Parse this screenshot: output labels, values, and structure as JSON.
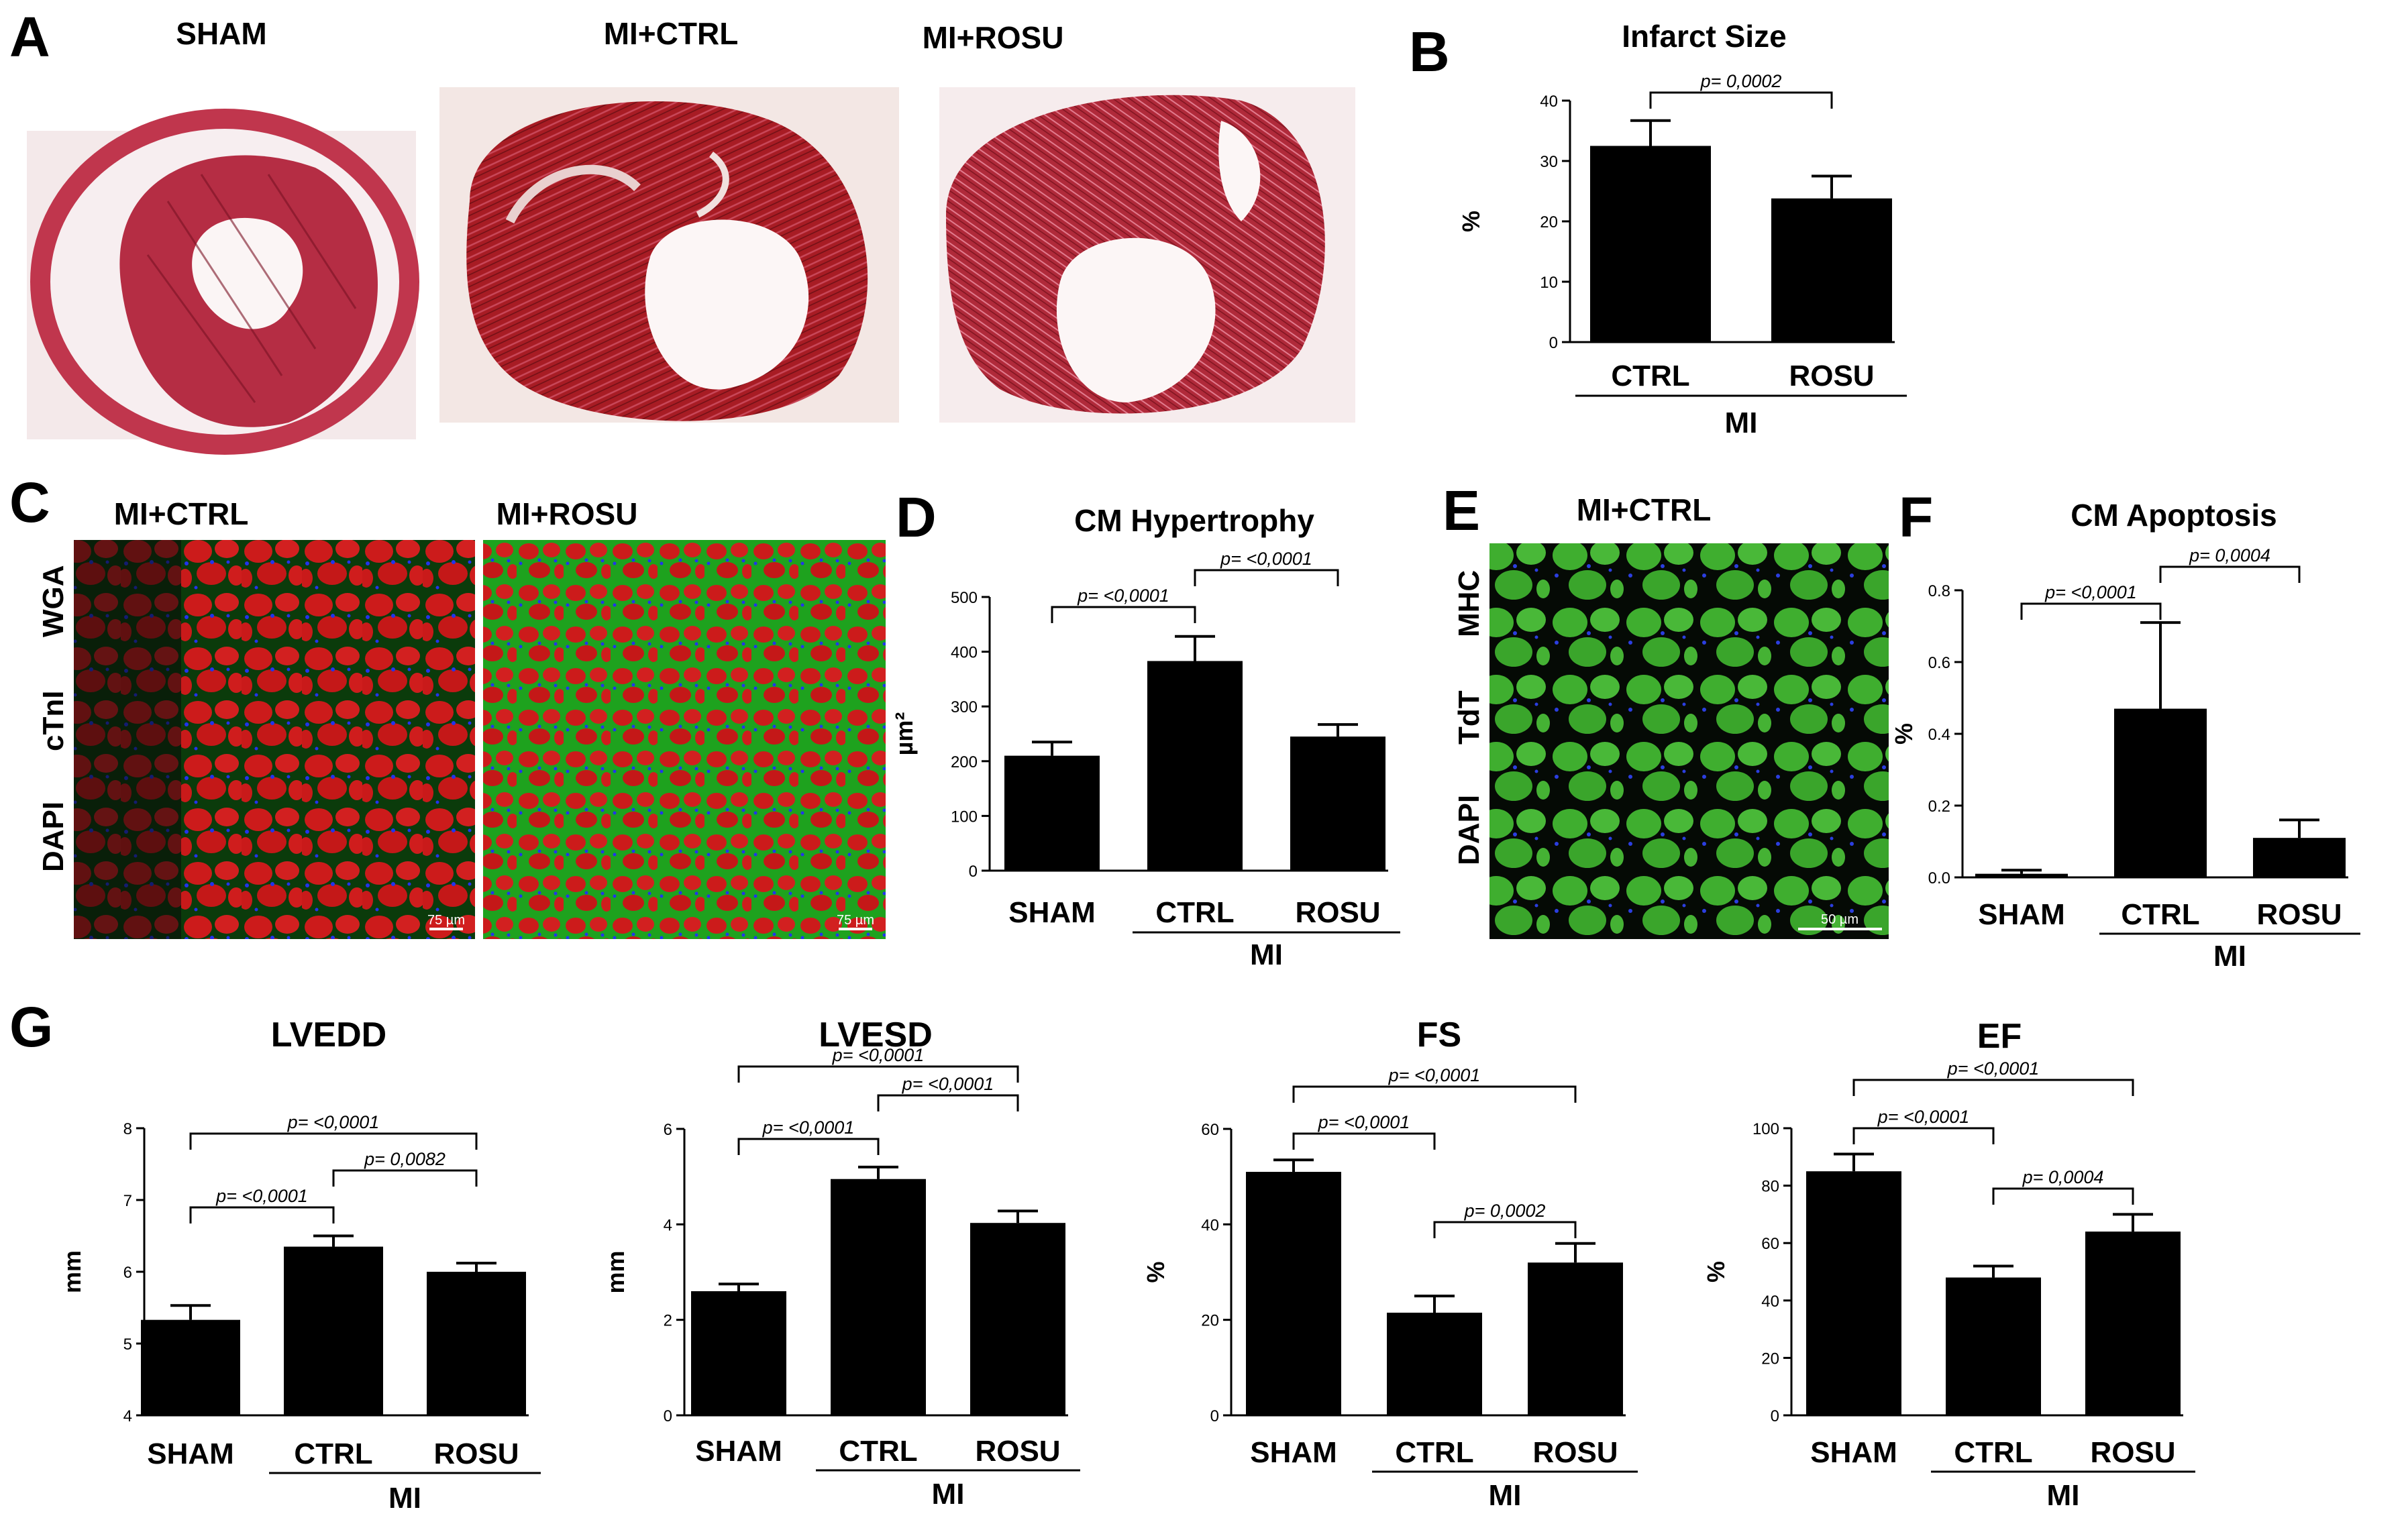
{
  "panels": {
    "A": {
      "letter": "A",
      "labels": [
        "SHAM",
        "MI+CTRL",
        "MI+ROSU"
      ],
      "colors": {
        "tissue": "#b5283e",
        "tissue_light": "#d9607a",
        "lumen": "#fbf3f3",
        "fibrosis": "#9c1c22"
      }
    },
    "C": {
      "letter": "C",
      "labels": [
        "MI+CTRL",
        "MI+ROSU"
      ],
      "stain_labels": [
        {
          "text": "WGA",
          "color": "#1fd11f"
        },
        {
          "text": "cTnI",
          "color": "#e01a1a"
        },
        {
          "text": "DAPI",
          "color": "#1a2bd9"
        }
      ],
      "scale_bars": [
        "75 µm",
        "75 µm"
      ]
    },
    "E": {
      "letter": "E",
      "label": "MI+CTRL",
      "stain_labels": [
        {
          "text": "MHC",
          "color": "#1fd11f"
        },
        {
          "text": "TdT",
          "color": "#e01a1a"
        },
        {
          "text": "DAPI",
          "color": "#1a2bd9"
        }
      ],
      "scale_bar": "50 µm"
    }
  },
  "chart_data": [
    {
      "panel": "B",
      "type": "bar",
      "title": "Infarct Size",
      "ylabel": "%",
      "categories": [
        "CTRL",
        "ROSU"
      ],
      "group_label": "MI",
      "group_span": [
        0,
        1
      ],
      "values": [
        32.5,
        23.8
      ],
      "errors": [
        4.2,
        3.7
      ],
      "ylim": [
        0,
        40
      ],
      "yticks": [
        0,
        10,
        20,
        30,
        40
      ],
      "comparisons": [
        {
          "from": 0,
          "to": 1,
          "text": "p= 0,0002"
        }
      ]
    },
    {
      "panel": "D",
      "type": "bar",
      "title": "CM Hypertrophy",
      "ylabel": "µm²",
      "categories": [
        "SHAM",
        "CTRL",
        "ROSU"
      ],
      "group_label": "MI",
      "group_span": [
        1,
        2
      ],
      "values": [
        210,
        383,
        245
      ],
      "errors": [
        25,
        45,
        22
      ],
      "ylim": [
        0,
        500
      ],
      "yticks": [
        0,
        100,
        200,
        300,
        400,
        500
      ],
      "comparisons": [
        {
          "from": 0,
          "to": 1,
          "text": "p= <0,0001"
        },
        {
          "from": 1,
          "to": 2,
          "text": "p= <0,0001"
        }
      ]
    },
    {
      "panel": "F",
      "type": "bar",
      "title": "CM Apoptosis",
      "ylabel": "%",
      "categories": [
        "SHAM",
        "CTRL",
        "ROSU"
      ],
      "group_label": "MI",
      "group_span": [
        1,
        2
      ],
      "values": [
        0.01,
        0.47,
        0.11
      ],
      "errors": [
        0.01,
        0.24,
        0.05
      ],
      "ylim": [
        0,
        0.8
      ],
      "yticks": [
        0.0,
        0.2,
        0.4,
        0.6,
        0.8
      ],
      "comparisons": [
        {
          "from": 0,
          "to": 1,
          "text": "p= <0,0001"
        },
        {
          "from": 1,
          "to": 2,
          "text": "p= 0,0004"
        }
      ]
    },
    {
      "panel": "G1",
      "type": "bar",
      "title": "LVEDD",
      "ylabel": "mm",
      "categories": [
        "SHAM",
        "CTRL",
        "ROSU"
      ],
      "group_label": "MI",
      "group_span": [
        1,
        2
      ],
      "values": [
        5.33,
        6.35,
        6.0
      ],
      "errors": [
        0.2,
        0.15,
        0.12
      ],
      "ylim": [
        4,
        8
      ],
      "yticks": [
        4,
        5,
        6,
        7,
        8
      ],
      "comparisons": [
        {
          "from": 0,
          "to": 1,
          "text": "p= <0,0001"
        },
        {
          "from": 1,
          "to": 2,
          "text": "p= 0,0082"
        },
        {
          "from": 0,
          "to": 2,
          "text": "p= <0,0001"
        }
      ]
    },
    {
      "panel": "G2",
      "type": "bar",
      "title": "LVESD",
      "ylabel": "mm",
      "categories": [
        "SHAM",
        "CTRL",
        "ROSU"
      ],
      "group_label": "MI",
      "group_span": [
        1,
        2
      ],
      "values": [
        2.6,
        4.95,
        4.03
      ],
      "errors": [
        0.15,
        0.25,
        0.25
      ],
      "ylim": [
        0,
        6
      ],
      "yticks": [
        0,
        2,
        4,
        6
      ],
      "comparisons": [
        {
          "from": 0,
          "to": 1,
          "text": "p= <0,0001"
        },
        {
          "from": 1,
          "to": 2,
          "text": "p= <0,0001"
        },
        {
          "from": 0,
          "to": 2,
          "text": "p= <0,0001"
        }
      ]
    },
    {
      "panel": "G3",
      "type": "bar",
      "title": "FS",
      "ylabel": "%",
      "categories": [
        "SHAM",
        "CTRL",
        "ROSU"
      ],
      "group_label": "MI",
      "group_span": [
        1,
        2
      ],
      "values": [
        51,
        21.5,
        32
      ],
      "errors": [
        2.5,
        3.5,
        4
      ],
      "ylim": [
        0,
        60
      ],
      "yticks": [
        0,
        20,
        40,
        60
      ],
      "comparisons": [
        {
          "from": 0,
          "to": 1,
          "text": "p= <0,0001"
        },
        {
          "from": 1,
          "to": 2,
          "text": "p= 0,0002"
        },
        {
          "from": 0,
          "to": 2,
          "text": "p= <0,0001"
        }
      ]
    },
    {
      "panel": "G4",
      "type": "bar",
      "title": "EF",
      "ylabel": "%",
      "categories": [
        "SHAM",
        "CTRL",
        "ROSU"
      ],
      "group_label": "MI",
      "group_span": [
        1,
        2
      ],
      "values": [
        85,
        48,
        64
      ],
      "errors": [
        6,
        4,
        6
      ],
      "ylim": [
        0,
        100
      ],
      "yticks": [
        0,
        20,
        40,
        60,
        80,
        100
      ],
      "comparisons": [
        {
          "from": 0,
          "to": 1,
          "text": "p= <0,0001"
        },
        {
          "from": 1,
          "to": 2,
          "text": "p= 0,0004"
        },
        {
          "from": 0,
          "to": 2,
          "text": "p= <0,0001"
        }
      ]
    }
  ],
  "letters": {
    "B": "B",
    "D": "D",
    "F": "F",
    "G": "G"
  }
}
